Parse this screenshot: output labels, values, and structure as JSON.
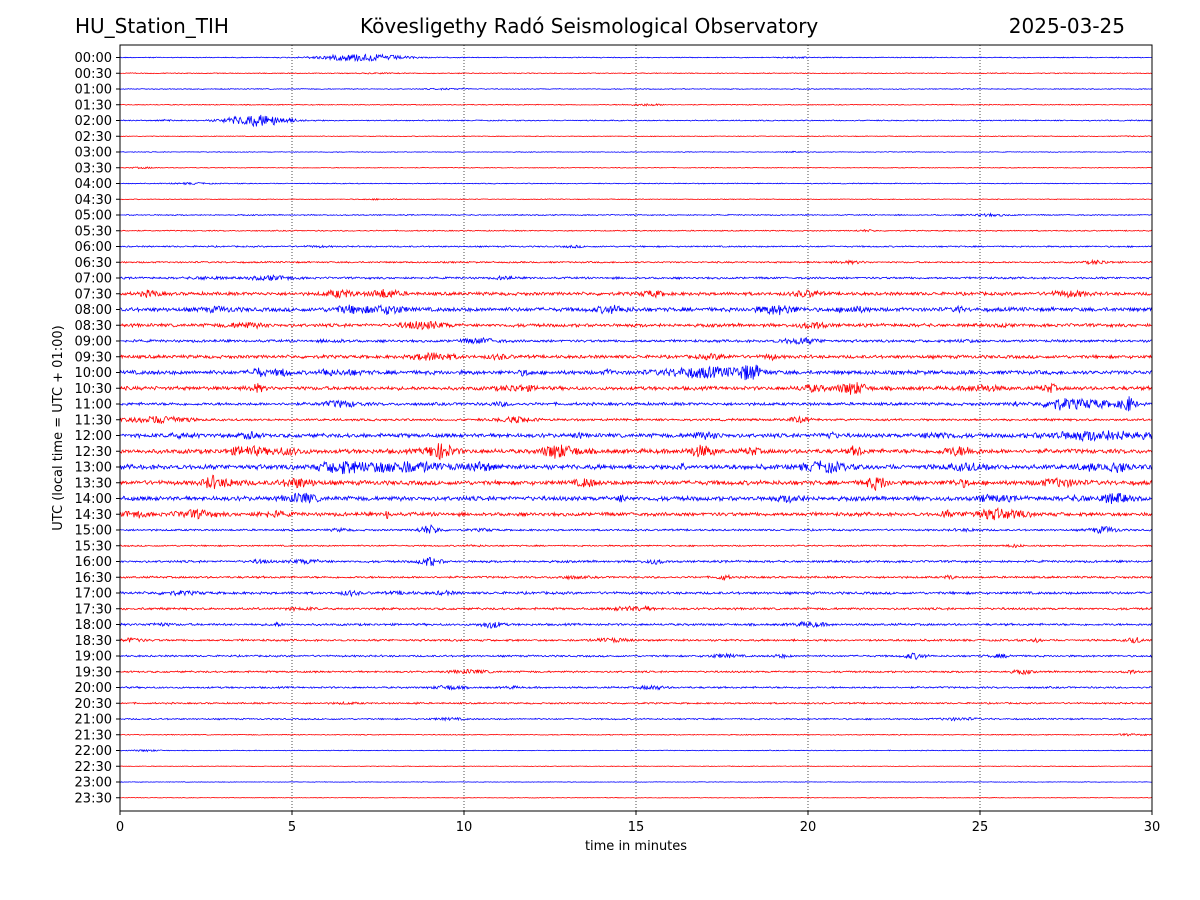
{
  "header": {
    "station": "HU_Station_TIH",
    "observatory": "Kövesligethy Radó Seismological Observatory",
    "date": "2025-03-25"
  },
  "chart_data": {
    "type": "line",
    "title": "Kövesligethy Radó Seismological Observatory",
    "xlabel": "time in minutes",
    "ylabel": "UTC (local time = UTC + 01:00)",
    "xlim": [
      0,
      30
    ],
    "xticks": [
      0,
      5,
      10,
      15,
      20,
      25,
      30
    ],
    "x_gridlines": [
      5,
      10,
      15,
      20,
      25
    ],
    "colors": {
      "even_row": "#0000ff",
      "odd_row": "#ff0000"
    },
    "rows": [
      "00:00",
      "00:30",
      "01:00",
      "01:30",
      "02:00",
      "02:30",
      "03:00",
      "03:30",
      "04:00",
      "04:30",
      "05:00",
      "05:30",
      "06:00",
      "06:30",
      "07:00",
      "07:30",
      "08:00",
      "08:30",
      "09:00",
      "09:30",
      "10:00",
      "10:30",
      "11:00",
      "11:30",
      "12:00",
      "12:30",
      "13:00",
      "13:30",
      "14:00",
      "14:30",
      "15:00",
      "15:30",
      "16:00",
      "16:30",
      "17:00",
      "17:30",
      "18:00",
      "18:30",
      "19:00",
      "19:30",
      "20:00",
      "20:30",
      "21:00",
      "21:30",
      "22:00",
      "22:30",
      "23:00",
      "23:30"
    ],
    "noise_level": [
      0.12,
      0.12,
      0.12,
      0.12,
      0.15,
      0.1,
      0.1,
      0.1,
      0.12,
      0.1,
      0.15,
      0.15,
      0.2,
      0.22,
      0.28,
      0.45,
      0.55,
      0.45,
      0.35,
      0.45,
      0.55,
      0.5,
      0.4,
      0.3,
      0.55,
      0.6,
      0.65,
      0.6,
      0.6,
      0.5,
      0.25,
      0.2,
      0.3,
      0.28,
      0.35,
      0.3,
      0.3,
      0.28,
      0.25,
      0.25,
      0.25,
      0.22,
      0.2,
      0.12,
      0.1,
      0.08,
      0.08,
      0.08
    ],
    "events": [
      {
        "row": "00:00",
        "t": 7.0,
        "amp": 0.8,
        "dur": 1.2
      },
      {
        "row": "02:00",
        "t": 4.0,
        "amp": 1.3,
        "dur": 0.9
      },
      {
        "row": "07:30",
        "t": 7.7,
        "amp": 0.9,
        "dur": 0.4
      },
      {
        "row": "08:00",
        "t": 7.8,
        "amp": 0.8,
        "dur": 0.5
      },
      {
        "row": "10:00",
        "t": 17.0,
        "amp": 1.0,
        "dur": 1.2
      },
      {
        "row": "10:00",
        "t": 18.3,
        "amp": 1.8,
        "dur": 0.3
      },
      {
        "row": "10:30",
        "t": 21.3,
        "amp": 1.3,
        "dur": 0.4
      },
      {
        "row": "11:00",
        "t": 28.0,
        "amp": 0.9,
        "dur": 1.0
      },
      {
        "row": "11:00",
        "t": 29.3,
        "amp": 1.6,
        "dur": 0.2
      },
      {
        "row": "11:30",
        "t": 1.4,
        "amp": 0.8,
        "dur": 0.6
      },
      {
        "row": "12:00",
        "t": 28.5,
        "amp": 0.9,
        "dur": 1.5
      },
      {
        "row": "12:30",
        "t": 9.3,
        "amp": 1.6,
        "dur": 0.4
      },
      {
        "row": "12:30",
        "t": 12.6,
        "amp": 1.0,
        "dur": 0.3
      },
      {
        "row": "13:00",
        "t": 8.0,
        "amp": 1.0,
        "dur": 1.5
      },
      {
        "row": "13:30",
        "t": 22.0,
        "amp": 1.3,
        "dur": 0.3
      },
      {
        "row": "14:30",
        "t": 25.5,
        "amp": 1.0,
        "dur": 0.8
      },
      {
        "row": "15:00",
        "t": 9.0,
        "amp": 1.0,
        "dur": 0.3
      },
      {
        "row": "15:00",
        "t": 28.6,
        "amp": 0.7,
        "dur": 0.4
      },
      {
        "row": "16:00",
        "t": 9.0,
        "amp": 0.9,
        "dur": 0.3
      },
      {
        "row": "18:00",
        "t": 10.8,
        "amp": 0.7,
        "dur": 0.3
      },
      {
        "row": "18:30",
        "t": 29.5,
        "amp": 0.6,
        "dur": 0.2
      },
      {
        "row": "19:00",
        "t": 23.1,
        "amp": 0.6,
        "dur": 0.3
      }
    ]
  }
}
